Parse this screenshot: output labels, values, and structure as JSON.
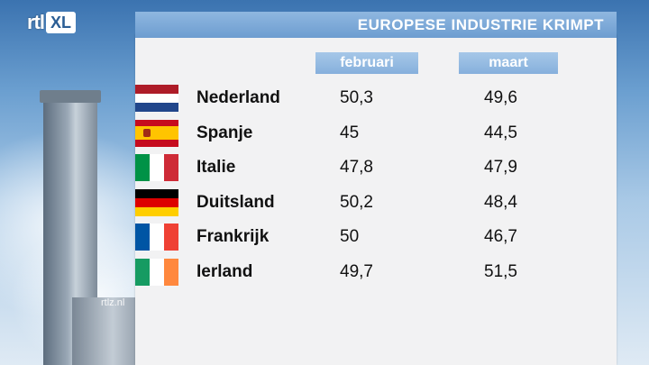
{
  "logo": {
    "rtl": "rtl",
    "xl": "XL"
  },
  "watermark": "rtlz.nl",
  "title": "EUROPESE INDUSTRIE KRIMPT",
  "columns": {
    "february": "februari",
    "march": "maart"
  },
  "rows": [
    {
      "country": "Nederland",
      "february": "50,3",
      "march": "49,6",
      "flag": [
        "#ae1c28",
        "#ffffff",
        "#21468b"
      ],
      "flag_orientation": "horizontal"
    },
    {
      "country": "Spanje",
      "february": "45",
      "march": "44,5",
      "flag": [
        "#c60b1e",
        "#ffc400",
        "#c60b1e"
      ],
      "flag_orientation": "horizontal"
    },
    {
      "country": "Italie",
      "february": "47,8",
      "march": "47,9",
      "flag": [
        "#009246",
        "#ffffff",
        "#ce2b37"
      ],
      "flag_orientation": "vertical"
    },
    {
      "country": "Duitsland",
      "february": "50,2",
      "march": "48,4",
      "flag": [
        "#000000",
        "#dd0000",
        "#ffce00"
      ],
      "flag_orientation": "horizontal"
    },
    {
      "country": "Frankrijk",
      "february": "50",
      "march": "46,7",
      "flag": [
        "#0055a4",
        "#ffffff",
        "#ef4135"
      ],
      "flag_orientation": "vertical"
    },
    {
      "country": "Ierland",
      "february": "49,7",
      "march": "51,5",
      "flag": [
        "#169b62",
        "#ffffff",
        "#ff883e"
      ],
      "flag_orientation": "vertical"
    }
  ]
}
